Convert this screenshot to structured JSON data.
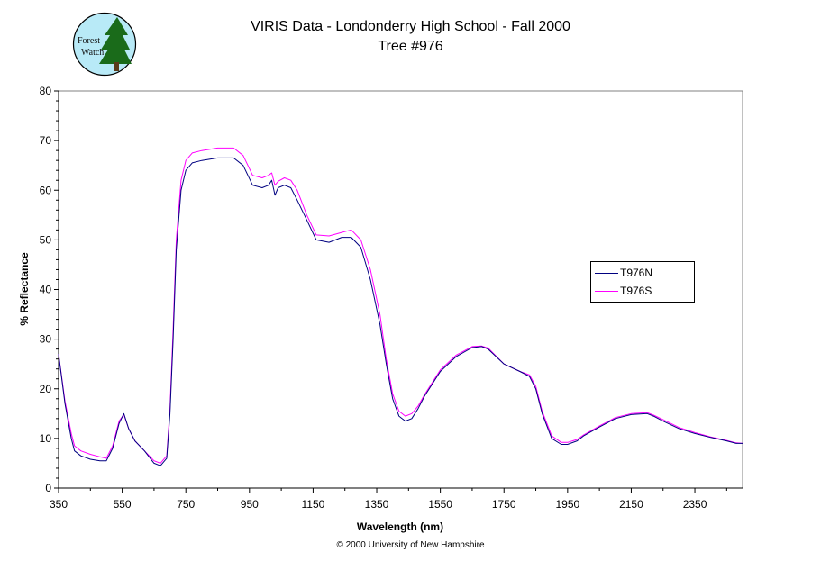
{
  "logo": {
    "text_line1": "Forest",
    "text_line2": "Watch"
  },
  "copyright": "© 2000 University of New Hampshire",
  "colors": {
    "T976N": "#000080",
    "T976S": "#ff00ff",
    "logo_bg": "#b8eaf7",
    "logo_tree": "#1a6b1a"
  },
  "chart_data": {
    "type": "line",
    "title": "VIRIS Data - Londonderry High School - Fall 2000",
    "subtitle": "Tree #976",
    "xlabel": "Wavelength (nm)",
    "ylabel": "% Reflectance",
    "xlim": [
      350,
      2500
    ],
    "ylim": [
      0,
      80
    ],
    "xticks": [
      350,
      550,
      750,
      950,
      1150,
      1350,
      1550,
      1750,
      1950,
      2150,
      2350
    ],
    "yticks": [
      0,
      10,
      20,
      30,
      40,
      50,
      60,
      70,
      80
    ],
    "grid": false,
    "legend_position": "right",
    "series": [
      {
        "name": "T976N",
        "x": [
          350,
          370,
          390,
          400,
          420,
          450,
          480,
          500,
          520,
          540,
          555,
          570,
          590,
          620,
          650,
          670,
          690,
          700,
          710,
          720,
          735,
          750,
          770,
          800,
          850,
          900,
          930,
          960,
          990,
          1010,
          1020,
          1030,
          1040,
          1060,
          1080,
          1100,
          1130,
          1160,
          1200,
          1240,
          1270,
          1300,
          1330,
          1360,
          1380,
          1400,
          1420,
          1440,
          1460,
          1480,
          1500,
          1550,
          1600,
          1650,
          1680,
          1700,
          1750,
          1800,
          1830,
          1850,
          1870,
          1900,
          1930,
          1950,
          1980,
          2000,
          2050,
          2100,
          2150,
          2200,
          2220,
          2250,
          2300,
          2350,
          2400,
          2450,
          2480,
          2500
        ],
        "y": [
          27,
          17,
          10,
          7.5,
          6.5,
          5.8,
          5.5,
          5.5,
          8,
          13,
          15,
          12,
          9.5,
          7.5,
          5,
          4.5,
          6,
          15,
          30,
          48,
          60,
          64,
          65.5,
          66,
          66.5,
          66.5,
          65,
          61,
          60.5,
          61,
          62,
          59,
          60.5,
          61,
          60.5,
          58,
          54,
          50,
          49.5,
          50.5,
          50.5,
          48.5,
          42,
          33,
          25,
          18,
          14.5,
          13.5,
          14,
          16,
          18.5,
          23.5,
          26.5,
          28.3,
          28.5,
          28,
          25,
          23.5,
          22.5,
          20,
          15,
          10,
          8.8,
          8.8,
          9.5,
          10.5,
          12.3,
          14,
          14.8,
          15,
          14.5,
          13.5,
          12,
          11,
          10.2,
          9.5,
          9,
          9
        ]
      },
      {
        "name": "T976S",
        "x": [
          350,
          370,
          390,
          400,
          420,
          450,
          480,
          500,
          520,
          540,
          555,
          570,
          590,
          620,
          650,
          670,
          690,
          700,
          710,
          720,
          735,
          750,
          770,
          800,
          850,
          900,
          930,
          960,
          990,
          1010,
          1020,
          1030,
          1040,
          1060,
          1080,
          1100,
          1130,
          1160,
          1200,
          1240,
          1270,
          1300,
          1330,
          1360,
          1380,
          1400,
          1420,
          1440,
          1460,
          1480,
          1500,
          1550,
          1600,
          1650,
          1680,
          1700,
          1750,
          1800,
          1830,
          1850,
          1870,
          1900,
          1930,
          1950,
          1980,
          2000,
          2050,
          2100,
          2150,
          2200,
          2220,
          2250,
          2300,
          2350,
          2400,
          2450,
          2480,
          2500
        ],
        "y": [
          27,
          17.5,
          11,
          8.5,
          7.5,
          6.8,
          6.3,
          6,
          8.5,
          13.5,
          14.8,
          12,
          9.5,
          7.5,
          5.5,
          5,
          6.5,
          16,
          32,
          50,
          62,
          66,
          67.5,
          68,
          68.5,
          68.5,
          67,
          63,
          62.5,
          63,
          63.5,
          61,
          61.8,
          62.5,
          62,
          60,
          55,
          51,
          50.8,
          51.5,
          52,
          50,
          44,
          35,
          26,
          19,
          15.5,
          14.5,
          15,
          16.5,
          18.8,
          23.8,
          26.8,
          28.5,
          28.6,
          28.2,
          25,
          23.5,
          22.8,
          20.5,
          15.5,
          10.5,
          9.2,
          9.2,
          9.8,
          10.7,
          12.5,
          14.2,
          15,
          15.2,
          14.7,
          13.8,
          12.2,
          11.2,
          10.3,
          9.6,
          9.1,
          9
        ]
      }
    ]
  }
}
